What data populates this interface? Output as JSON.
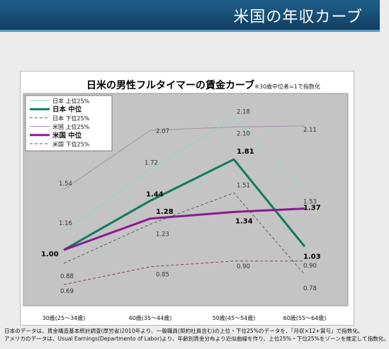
{
  "header": {
    "title": "米国の年収カーブ"
  },
  "chart_data": {
    "type": "line",
    "title": "日米の男性フルタイマーの賃金カーブ",
    "subtitle": "※30歳中位者=1で指数化",
    "categories": [
      "30歳(25～34歳)",
      "40歳(35～44歳)",
      "50歳(45～54歳)",
      "60歳(55～64歳)"
    ],
    "ylim": [
      0.5,
      2.4
    ],
    "grid": false,
    "legend_position": "top-left",
    "series": [
      {
        "name": "日本 上位25%",
        "values": [
          1.16,
          1.72,
          2.18,
          1.53
        ],
        "color": "#8fd3d0",
        "dash": "none",
        "width": 1,
        "labels": [
          "1.16",
          "1.72",
          "2.18",
          "1.53"
        ],
        "bold": false
      },
      {
        "name": "日本 中位",
        "values": [
          1.0,
          1.44,
          1.81,
          1.03
        ],
        "color": "#0f7a62",
        "dash": "none",
        "width": 3,
        "labels": [
          "1.00",
          "1.44",
          "1.81",
          "1.03"
        ],
        "bold": true
      },
      {
        "name": "日本 下位25%",
        "values": [
          0.88,
          1.23,
          1.51,
          0.78
        ],
        "color": "#4a6b50",
        "dash": "4,3",
        "width": 1,
        "labels": [
          "0.88",
          "1.23",
          "1.51",
          "0.78"
        ],
        "bold": false
      },
      {
        "name": "米国 上位25%",
        "values": [
          1.54,
          2.07,
          2.1,
          2.11
        ],
        "color": "#a490a8",
        "dash": "none",
        "width": 1,
        "labels": [
          "1.54",
          "2.07",
          "2.10",
          "2.11"
        ],
        "bold": false
      },
      {
        "name": "米国 中位",
        "values": [
          1.0,
          1.28,
          1.34,
          1.37
        ],
        "color": "#8c1a8c",
        "dash": "none",
        "width": 3,
        "labels": [
          "",
          "1.28",
          "1.34",
          "1.37"
        ],
        "bold": true
      },
      {
        "name": "米国 下位25%",
        "values": [
          0.69,
          0.85,
          0.9,
          0.9
        ],
        "color": "#8a3a6a",
        "dash": "4,3",
        "width": 1,
        "labels": [
          "0.69",
          "0.85",
          "0.90",
          "0.90"
        ],
        "bold": false
      }
    ]
  },
  "footnotes": [
    "日本のデータは、賃金構造基本統計調査(厚労省)2010年より、一般職員(契約社員含む)の上位・下位25%のデータを、「月収×12+賞与」で指数化。",
    "アメリカのデータは、Usual Earnings(Departmento of Labor)より、年齢別賃金分布より近似曲線を作り、上位25%・下位25%をゾーンを推定して指数化。"
  ]
}
